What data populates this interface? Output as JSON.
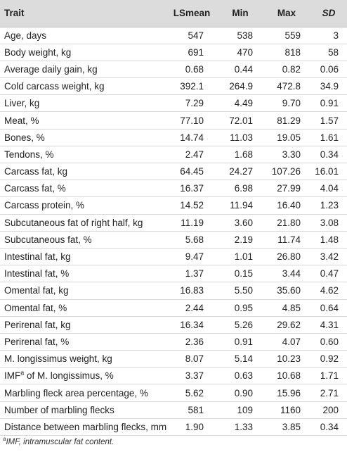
{
  "table": {
    "headers": [
      "Trait",
      "LSmean",
      "Min",
      "Max",
      "SD"
    ],
    "rows": [
      {
        "trait": "Age, days",
        "lsmean": "547",
        "min": "538",
        "max": "559",
        "sd": "3"
      },
      {
        "trait": "Body weight, kg",
        "lsmean": "691",
        "min": "470",
        "max": "818",
        "sd": "58"
      },
      {
        "trait": "Average daily gain, kg",
        "lsmean": "0.68",
        "min": "0.44",
        "max": "0.82",
        "sd": "0.06"
      },
      {
        "trait": "Cold carcass weight, kg",
        "lsmean": "392.1",
        "min": "264.9",
        "max": "472.8",
        "sd": "34.9"
      },
      {
        "trait": "Liver, kg",
        "lsmean": "7.29",
        "min": "4.49",
        "max": "9.70",
        "sd": "0.91"
      },
      {
        "trait": "Meat, %",
        "lsmean": "77.10",
        "min": "72.01",
        "max": "81.29",
        "sd": "1.57"
      },
      {
        "trait": "Bones, %",
        "lsmean": "14.74",
        "min": "11.03",
        "max": "19.05",
        "sd": "1.61"
      },
      {
        "trait": "Tendons, %",
        "lsmean": "2.47",
        "min": "1.68",
        "max": "3.30",
        "sd": "0.34"
      },
      {
        "trait": "Carcass fat, kg",
        "lsmean": "64.45",
        "min": "24.27",
        "max": "107.26",
        "sd": "16.01"
      },
      {
        "trait": "Carcass fat, %",
        "lsmean": "16.37",
        "min": "6.98",
        "max": "27.99",
        "sd": "4.04"
      },
      {
        "trait": "Carcass protein, %",
        "lsmean": "14.52",
        "min": "11.94",
        "max": "16.40",
        "sd": "1.23"
      },
      {
        "trait": "Subcutaneous fat of right half, kg",
        "lsmean": "11.19",
        "min": "3.60",
        "max": "21.80",
        "sd": "3.08"
      },
      {
        "trait": "Subcutaneous fat, %",
        "lsmean": "5.68",
        "min": "2.19",
        "max": "11.74",
        "sd": "1.48"
      },
      {
        "trait": "Intestinal fat, kg",
        "lsmean": "9.47",
        "min": "1.01",
        "max": "26.80",
        "sd": "3.42"
      },
      {
        "trait": "Intestinal fat, %",
        "lsmean": "1.37",
        "min": "0.15",
        "max": "3.44",
        "sd": "0.47"
      },
      {
        "trait": "Omental fat, kg",
        "lsmean": "16.83",
        "min": "5.50",
        "max": "35.60",
        "sd": "4.62"
      },
      {
        "trait": "Omental fat, %",
        "lsmean": "2.44",
        "min": "0.95",
        "max": "4.85",
        "sd": "0.64"
      },
      {
        "trait": "Perirenal fat, kg",
        "lsmean": "16.34",
        "min": "5.26",
        "max": "29.62",
        "sd": "4.31"
      },
      {
        "trait": "Perirenal fat, %",
        "lsmean": "2.36",
        "min": "0.91",
        "max": "4.07",
        "sd": "0.60"
      },
      {
        "trait": "M. longissimus weight, kg",
        "lsmean": "8.07",
        "min": "5.14",
        "max": "10.23",
        "sd": "0.92"
      },
      {
        "trait_pre": "IMF",
        "trait_sup": "a",
        "trait_post": " of M. longissimus, %",
        "lsmean": "3.37",
        "min": "0.63",
        "max": "10.68",
        "sd": "1.71"
      },
      {
        "trait": "Marbling fleck area percentage, %",
        "lsmean": "5.62",
        "min": "0.90",
        "max": "15.96",
        "sd": "2.71"
      },
      {
        "trait": "Number of marbling flecks",
        "lsmean": "581",
        "min": "109",
        "max": "1160",
        "sd": "200"
      },
      {
        "trait": "Distance between marbling flecks, mm",
        "lsmean": "1.90",
        "min": "1.33",
        "max": "3.85",
        "sd": "0.34"
      }
    ]
  },
  "footnote": {
    "marker": "a",
    "text": "IMF, intramuscular fat content."
  }
}
